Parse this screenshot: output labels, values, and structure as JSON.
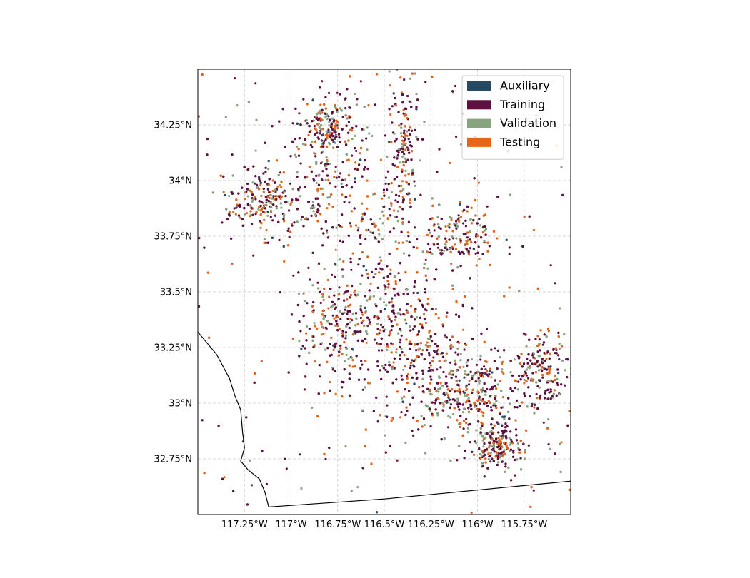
{
  "map": {
    "projection": "PlateCarree",
    "lon_range": [
      -117.5,
      -115.5
    ],
    "lat_range": [
      32.5,
      34.5
    ],
    "gridlines": true,
    "x_ticks": [
      {
        "value": -117.25,
        "label": "117.25°W"
      },
      {
        "value": -117.0,
        "label": "117°W"
      },
      {
        "value": -116.75,
        "label": "116.75°W"
      },
      {
        "value": -116.5,
        "label": "116.5°W"
      },
      {
        "value": -116.25,
        "label": "116.25°W"
      },
      {
        "value": -116.0,
        "label": "116°W"
      },
      {
        "value": -115.75,
        "label": "115.75°W"
      }
    ],
    "y_ticks": [
      {
        "value": 34.25,
        "label": "34.25°N"
      },
      {
        "value": 34.0,
        "label": "34°N"
      },
      {
        "value": 33.75,
        "label": "33.75°N"
      },
      {
        "value": 33.5,
        "label": "33.5°N"
      },
      {
        "value": 33.25,
        "label": "33.25°N"
      },
      {
        "value": 33.0,
        "label": "33°N"
      },
      {
        "value": 32.75,
        "label": "32.75°N"
      }
    ],
    "legend": {
      "position": "top-right",
      "entries": [
        {
          "name": "Auxiliary",
          "color": "#264a63"
        },
        {
          "name": "Training",
          "color": "#5e1040"
        },
        {
          "name": "Validation",
          "color": "#87a37f"
        },
        {
          "name": "Testing",
          "color": "#e5661a"
        }
      ]
    },
    "coastline": [
      [
        -117.5,
        33.32
      ],
      [
        -117.4,
        33.22
      ],
      [
        -117.33,
        33.11
      ],
      [
        -117.3,
        33.03
      ],
      [
        -117.27,
        32.97
      ],
      [
        -117.26,
        32.87
      ],
      [
        -117.25,
        32.8
      ],
      [
        -117.27,
        32.74
      ],
      [
        -117.23,
        32.7
      ],
      [
        -117.2,
        32.68
      ],
      [
        -117.17,
        32.66
      ],
      [
        -117.14,
        32.6
      ],
      [
        -117.12,
        32.534
      ]
    ],
    "border": [
      [
        -117.12,
        32.534
      ],
      [
        -116.5,
        32.57
      ],
      [
        -116.0,
        32.61
      ],
      [
        -115.5,
        32.65
      ]
    ],
    "clusters": [
      {
        "lon": -116.55,
        "lat": 33.55,
        "slon": 0.12,
        "slat": 0.28
      },
      {
        "lon": -116.35,
        "lat": 33.3,
        "slon": 0.14,
        "slat": 0.2
      },
      {
        "lon": -116.85,
        "lat": 33.95,
        "slon": 0.14,
        "slat": 0.13
      },
      {
        "lon": -116.2,
        "lat": 33.1,
        "slon": 0.13,
        "slat": 0.12
      },
      {
        "lon": -116.0,
        "lat": 33.05,
        "slon": 0.09,
        "slat": 0.09
      },
      {
        "lon": -115.9,
        "lat": 32.8,
        "slon": 0.07,
        "slat": 0.05
      },
      {
        "lon": -116.4,
        "lat": 34.15,
        "slon": 0.05,
        "slat": 0.18
      },
      {
        "lon": -116.1,
        "lat": 33.75,
        "slon": 0.1,
        "slat": 0.07
      },
      {
        "lon": -115.65,
        "lat": 33.15,
        "slon": 0.08,
        "slat": 0.09
      },
      {
        "lon": -116.8,
        "lat": 34.25,
        "slon": 0.08,
        "slat": 0.06
      },
      {
        "lon": -117.15,
        "lat": 33.92,
        "slon": 0.1,
        "slat": 0.07
      },
      {
        "lon": -116.78,
        "lat": 33.35,
        "slon": 0.1,
        "slat": 0.12
      }
    ]
  }
}
